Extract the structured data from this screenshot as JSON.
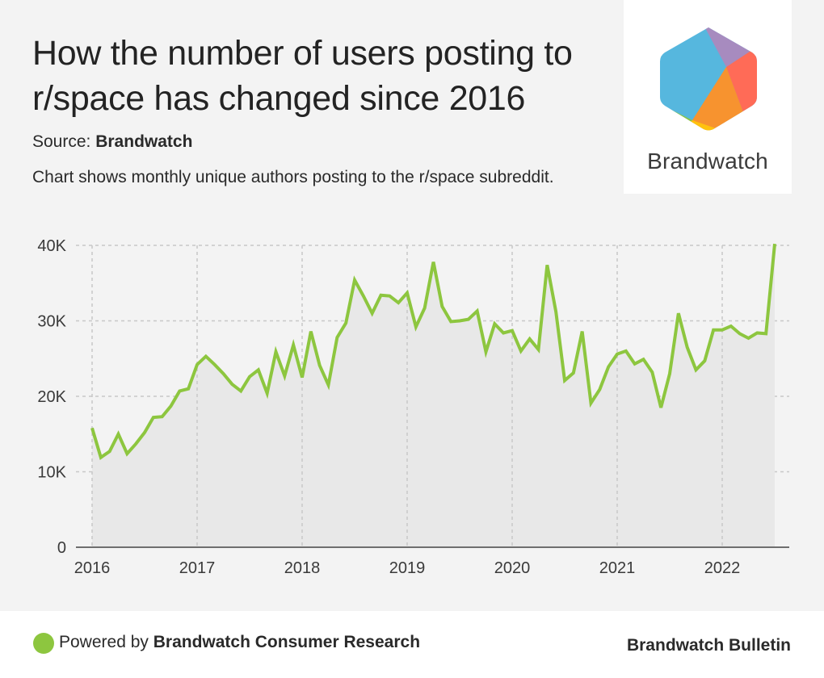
{
  "header": {
    "title": "How the number of users posting to r/space has changed since 2016",
    "source_label": "Source:",
    "source_name": "Brandwatch",
    "description": "Chart shows monthly unique authors posting to the r/space subreddit."
  },
  "logo": {
    "text": "Brandwatch",
    "colors": [
      "#56b7de",
      "#a78bbf",
      "#ff6b57",
      "#f7932f",
      "#ffc20e",
      "#8dc63f"
    ]
  },
  "footer": {
    "powered_prefix": "Powered by",
    "powered_name": "Brandwatch Consumer Research",
    "bulletin": "Brandwatch Bulletin",
    "dot_color": "#8dc63f"
  },
  "chart_data": {
    "type": "area",
    "title": "How the number of users posting to r/space has changed since 2016",
    "xlabel": "",
    "ylabel": "",
    "series_name": "Monthly unique authors",
    "line_color": "#8dc63f",
    "fill_color": "#e8e8e8",
    "grid": true,
    "ylim": [
      0,
      40000
    ],
    "yticks": [
      0,
      10000,
      20000,
      30000,
      40000
    ],
    "ytick_labels": [
      "0",
      "10K",
      "20K",
      "30K",
      "40K"
    ],
    "xticks": [
      "2016",
      "2017",
      "2018",
      "2019",
      "2020",
      "2021",
      "2022"
    ],
    "x_start": "2016-01",
    "x_end": "2022-07",
    "values": [
      15800,
      11900,
      12700,
      15000,
      12400,
      13700,
      15200,
      17200,
      17300,
      18700,
      20700,
      21000,
      24200,
      25300,
      24200,
      23000,
      21600,
      20700,
      22600,
      23500,
      20400,
      25900,
      22700,
      26800,
      22500,
      28600,
      24100,
      21500,
      27800,
      29700,
      35400,
      33300,
      31000,
      33400,
      33300,
      32400,
      33700,
      29200,
      31700,
      37800,
      31900,
      29900,
      30000,
      30200,
      31300,
      25900,
      29600,
      28400,
      28700,
      26000,
      27600,
      26200,
      37400,
      31200,
      22100,
      23100,
      28600,
      19100,
      20900,
      23900,
      25600,
      26000,
      24300,
      24900,
      23200,
      18500,
      23000,
      31000,
      26500,
      23500,
      24700,
      28800,
      28800,
      29300,
      28300,
      27700,
      28400,
      28300,
      40200
    ]
  }
}
